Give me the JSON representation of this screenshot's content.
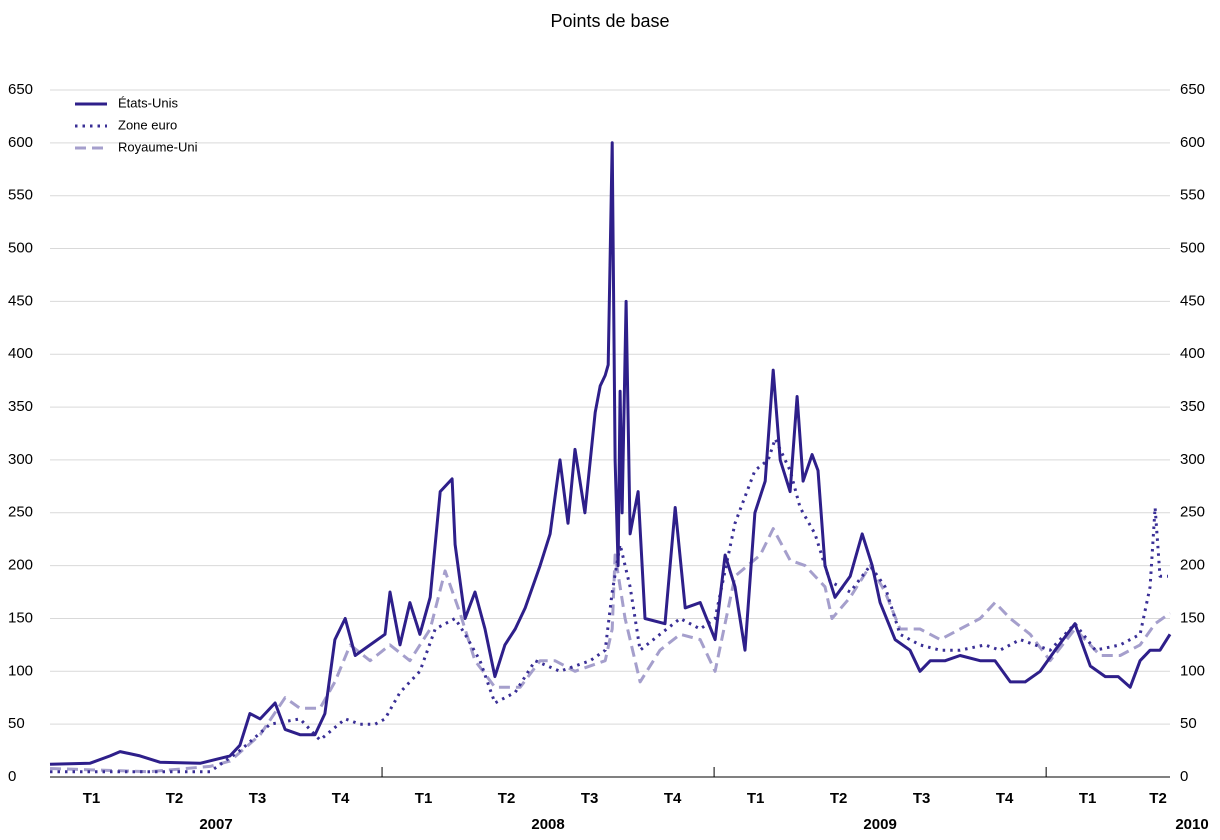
{
  "chart_data": {
    "type": "line",
    "title": "Points de base",
    "xlim": [
      2007,
      2010.373
    ],
    "ylim": [
      0,
      650
    ],
    "yticks": [
      0,
      50,
      100,
      150,
      200,
      250,
      300,
      350,
      400,
      450,
      500,
      550,
      600,
      650
    ],
    "xticks": [
      {
        "value": 2007.125,
        "label": "T1"
      },
      {
        "value": 2007.375,
        "label": "T2"
      },
      {
        "value": 2007.625,
        "label": "T3"
      },
      {
        "value": 2007.875,
        "label": "T4"
      },
      {
        "value": 2008.125,
        "label": "T1"
      },
      {
        "value": 2008.375,
        "label": "T2"
      },
      {
        "value": 2008.625,
        "label": "T3"
      },
      {
        "value": 2008.875,
        "label": "T4"
      },
      {
        "value": 2009.125,
        "label": "T1"
      },
      {
        "value": 2009.375,
        "label": "T2"
      },
      {
        "value": 2009.625,
        "label": "T3"
      },
      {
        "value": 2009.875,
        "label": "T4"
      },
      {
        "value": 2010.125,
        "label": "T1"
      },
      {
        "value": 2010.337,
        "label": "T2"
      }
    ],
    "year_ticks": [
      {
        "value": 2007.5,
        "label": "2007"
      },
      {
        "value": 2008.5,
        "label": "2008"
      },
      {
        "value": 2009.5,
        "label": "2009"
      },
      {
        "value": 2010.5,
        "label": "2010"
      }
    ],
    "grid": true,
    "legend": "top-left",
    "series": [
      {
        "name": "États-Unis",
        "color": "#2e1f8a",
        "dash": "solid",
        "x": [
          2007.0,
          2007.12,
          2007.181,
          2007.211,
          2007.271,
          2007.331,
          2007.452,
          2007.542,
          2007.572,
          2007.602,
          2007.633,
          2007.678,
          2007.708,
          2007.753,
          2007.798,
          2007.828,
          2007.858,
          2007.889,
          2007.919,
          2007.964,
          2008.009,
          2008.024,
          2008.054,
          2008.084,
          2008.114,
          2008.145,
          2008.175,
          2008.211,
          2008.22,
          2008.25,
          2008.28,
          2008.31,
          2008.34,
          2008.37,
          2008.401,
          2008.431,
          2008.476,
          2008.506,
          2008.536,
          2008.56,
          2008.581,
          2008.611,
          2008.642,
          2008.657,
          2008.672,
          2008.681,
          2008.693,
          2008.702,
          2008.711,
          2008.717,
          2008.723,
          2008.735,
          2008.747,
          2008.771,
          2008.792,
          2008.852,
          2008.883,
          2008.913,
          2008.958,
          2009.003,
          2009.033,
          2009.063,
          2009.093,
          2009.123,
          2009.154,
          2009.178,
          2009.199,
          2009.229,
          2009.25,
          2009.268,
          2009.295,
          2009.313,
          2009.334,
          2009.364,
          2009.41,
          2009.446,
          2009.476,
          2009.5,
          2009.545,
          2009.59,
          2009.62,
          2009.651,
          2009.696,
          2009.741,
          2009.801,
          2009.846,
          2009.892,
          2009.937,
          2009.982,
          2010.027,
          2010.087,
          2010.133,
          2010.178,
          2010.217,
          2010.253,
          2010.283,
          2010.313,
          2010.343,
          2010.373
        ],
        "values": [
          12,
          13,
          20,
          24,
          20,
          14,
          13,
          20,
          30,
          60,
          55,
          70,
          45,
          40,
          40,
          60,
          130,
          150,
          115,
          125,
          135,
          175,
          125,
          165,
          135,
          170,
          270,
          282,
          220,
          150,
          175,
          140,
          95,
          125,
          140,
          160,
          200,
          230,
          300,
          240,
          310,
          250,
          345,
          370,
          380,
          390,
          600,
          300,
          200,
          365,
          250,
          450,
          230,
          270,
          150,
          145,
          255,
          160,
          165,
          130,
          210,
          180,
          120,
          250,
          280,
          385,
          300,
          270,
          360,
          280,
          305,
          290,
          200,
          170,
          190,
          230,
          200,
          165,
          130,
          120,
          100,
          110,
          110,
          115,
          110,
          110,
          90,
          90,
          100,
          120,
          145,
          105,
          95,
          95,
          85,
          110,
          120,
          120,
          135
        ]
      },
      {
        "name": "Zone euro",
        "color": "#3a2f96",
        "dash": "dotted",
        "x": [
          2007.0,
          2007.301,
          2007.482,
          2007.572,
          2007.663,
          2007.753,
          2007.813,
          2007.889,
          2007.934,
          2007.979,
          2008.009,
          2008.054,
          2008.114,
          2008.16,
          2008.22,
          2008.25,
          2008.295,
          2008.34,
          2008.401,
          2008.461,
          2008.536,
          2008.627,
          2008.672,
          2008.693,
          2008.717,
          2008.747,
          2008.777,
          2008.837,
          2008.898,
          2008.958,
          2009.003,
          2009.063,
          2009.123,
          2009.163,
          2009.184,
          2009.229,
          2009.259,
          2009.304,
          2009.349,
          2009.41,
          2009.47,
          2009.515,
          2009.56,
          2009.62,
          2009.681,
          2009.741,
          2009.816,
          2009.861,
          2009.922,
          2010.012,
          2010.087,
          2010.148,
          2010.223,
          2010.283,
          2010.313,
          2010.328,
          2010.343,
          2010.367
        ],
        "values": [
          5,
          5,
          5,
          25,
          50,
          55,
          35,
          55,
          50,
          50,
          55,
          80,
          100,
          140,
          150,
          135,
          110,
          70,
          80,
          110,
          100,
          110,
          120,
          175,
          220,
          180,
          120,
          135,
          150,
          140,
          150,
          240,
          290,
          300,
          320,
          290,
          255,
          230,
          185,
          175,
          200,
          180,
          135,
          125,
          120,
          120,
          125,
          120,
          130,
          120,
          145,
          120,
          125,
          135,
          180,
          255,
          190,
          190
        ]
      },
      {
        "name": "Royaume-Uni",
        "color": "#a59fcc",
        "dash": "dashed",
        "x": [
          2007.0,
          2007.301,
          2007.482,
          2007.542,
          2007.633,
          2007.708,
          2007.753,
          2007.813,
          2007.858,
          2007.904,
          2007.964,
          2008.024,
          2008.084,
          2008.145,
          2008.19,
          2008.235,
          2008.28,
          2008.34,
          2008.416,
          2008.476,
          2008.521,
          2008.581,
          2008.672,
          2008.693,
          2008.702,
          2008.732,
          2008.777,
          2008.837,
          2008.898,
          2008.958,
          2009.003,
          2009.063,
          2009.139,
          2009.178,
          2009.229,
          2009.274,
          2009.334,
          2009.355,
          2009.41,
          2009.47,
          2009.515,
          2009.56,
          2009.62,
          2009.681,
          2009.741,
          2009.801,
          2009.846,
          2009.892,
          2009.952,
          2010.012,
          2010.087,
          2010.163,
          2010.223,
          2010.283,
          2010.328,
          2010.373
        ],
        "values": [
          8,
          5,
          10,
          15,
          40,
          75,
          65,
          65,
          90,
          125,
          110,
          125,
          110,
          140,
          195,
          155,
          110,
          85,
          85,
          110,
          110,
          100,
          110,
          140,
          210,
          150,
          90,
          120,
          135,
          130,
          100,
          190,
          210,
          235,
          205,
          200,
          180,
          150,
          170,
          200,
          175,
          140,
          140,
          130,
          140,
          150,
          165,
          150,
          135,
          110,
          140,
          115,
          115,
          125,
          145,
          155
        ]
      }
    ]
  }
}
